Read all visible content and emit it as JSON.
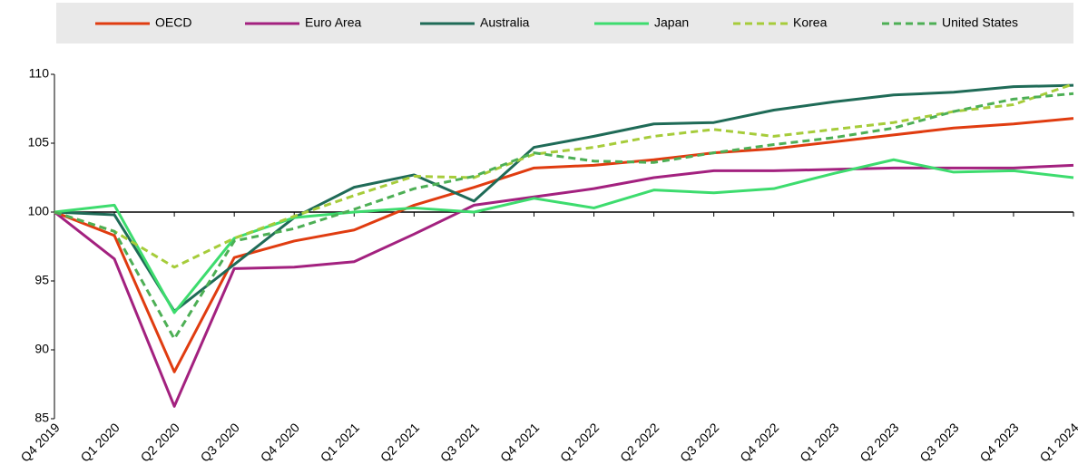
{
  "chart_data": {
    "type": "line",
    "categories": [
      "Q4 2019",
      "Q1 2020",
      "Q2 2020",
      "Q3 2020",
      "Q4 2020",
      "Q1 2021",
      "Q2 2021",
      "Q3 2021",
      "Q4 2021",
      "Q1 2022",
      "Q2 2022",
      "Q3 2022",
      "Q4 2022",
      "Q1 2023",
      "Q2 2023",
      "Q3 2023",
      "Q4 2023",
      "Q1 2024"
    ],
    "series": [
      {
        "name": "OECD",
        "color": "#e03c10",
        "dashed": false,
        "values": [
          100,
          98.3,
          88.4,
          96.7,
          97.9,
          98.7,
          100.5,
          101.8,
          103.2,
          103.4,
          103.8,
          104.3,
          104.6,
          105.1,
          105.6,
          106.1,
          106.4,
          106.8
        ]
      },
      {
        "name": "Euro Area",
        "color": "#a3217f",
        "dashed": false,
        "values": [
          100,
          96.6,
          85.9,
          95.9,
          96.0,
          96.4,
          98.4,
          100.5,
          101.1,
          101.7,
          102.5,
          103.0,
          103.0,
          103.1,
          103.2,
          103.2,
          103.2,
          103.4
        ]
      },
      {
        "name": "Australia",
        "color": "#1f6b57",
        "dashed": false,
        "values": [
          100,
          99.8,
          92.8,
          96.2,
          99.6,
          101.8,
          102.7,
          100.8,
          104.7,
          105.5,
          106.4,
          106.5,
          107.4,
          108.0,
          108.5,
          108.7,
          109.1,
          109.2
        ]
      },
      {
        "name": "Japan",
        "color": "#3ddc6e",
        "dashed": false,
        "values": [
          100,
          100.5,
          92.7,
          98.1,
          99.6,
          100.0,
          100.3,
          100.0,
          101.0,
          100.3,
          101.6,
          101.4,
          101.7,
          102.8,
          103.8,
          102.9,
          103.0,
          102.5
        ]
      },
      {
        "name": "Korea",
        "color": "#a6cc3a",
        "dashed": true,
        "values": [
          100,
          98.6,
          96.0,
          98.1,
          99.7,
          101.2,
          102.6,
          102.5,
          104.2,
          104.7,
          105.5,
          106.0,
          105.5,
          106.0,
          106.5,
          107.3,
          107.8,
          109.3
        ]
      },
      {
        "name": "United States",
        "color": "#4daf55",
        "dashed": true,
        "values": [
          100,
          98.6,
          90.8,
          97.9,
          98.8,
          100.2,
          101.7,
          102.6,
          104.3,
          103.7,
          103.6,
          104.3,
          104.9,
          105.4,
          106.1,
          107.3,
          108.2,
          108.6
        ]
      }
    ],
    "ylim": [
      85,
      110
    ],
    "yticks": [
      85,
      90,
      95,
      100,
      105,
      110
    ],
    "reference_line": 100
  }
}
